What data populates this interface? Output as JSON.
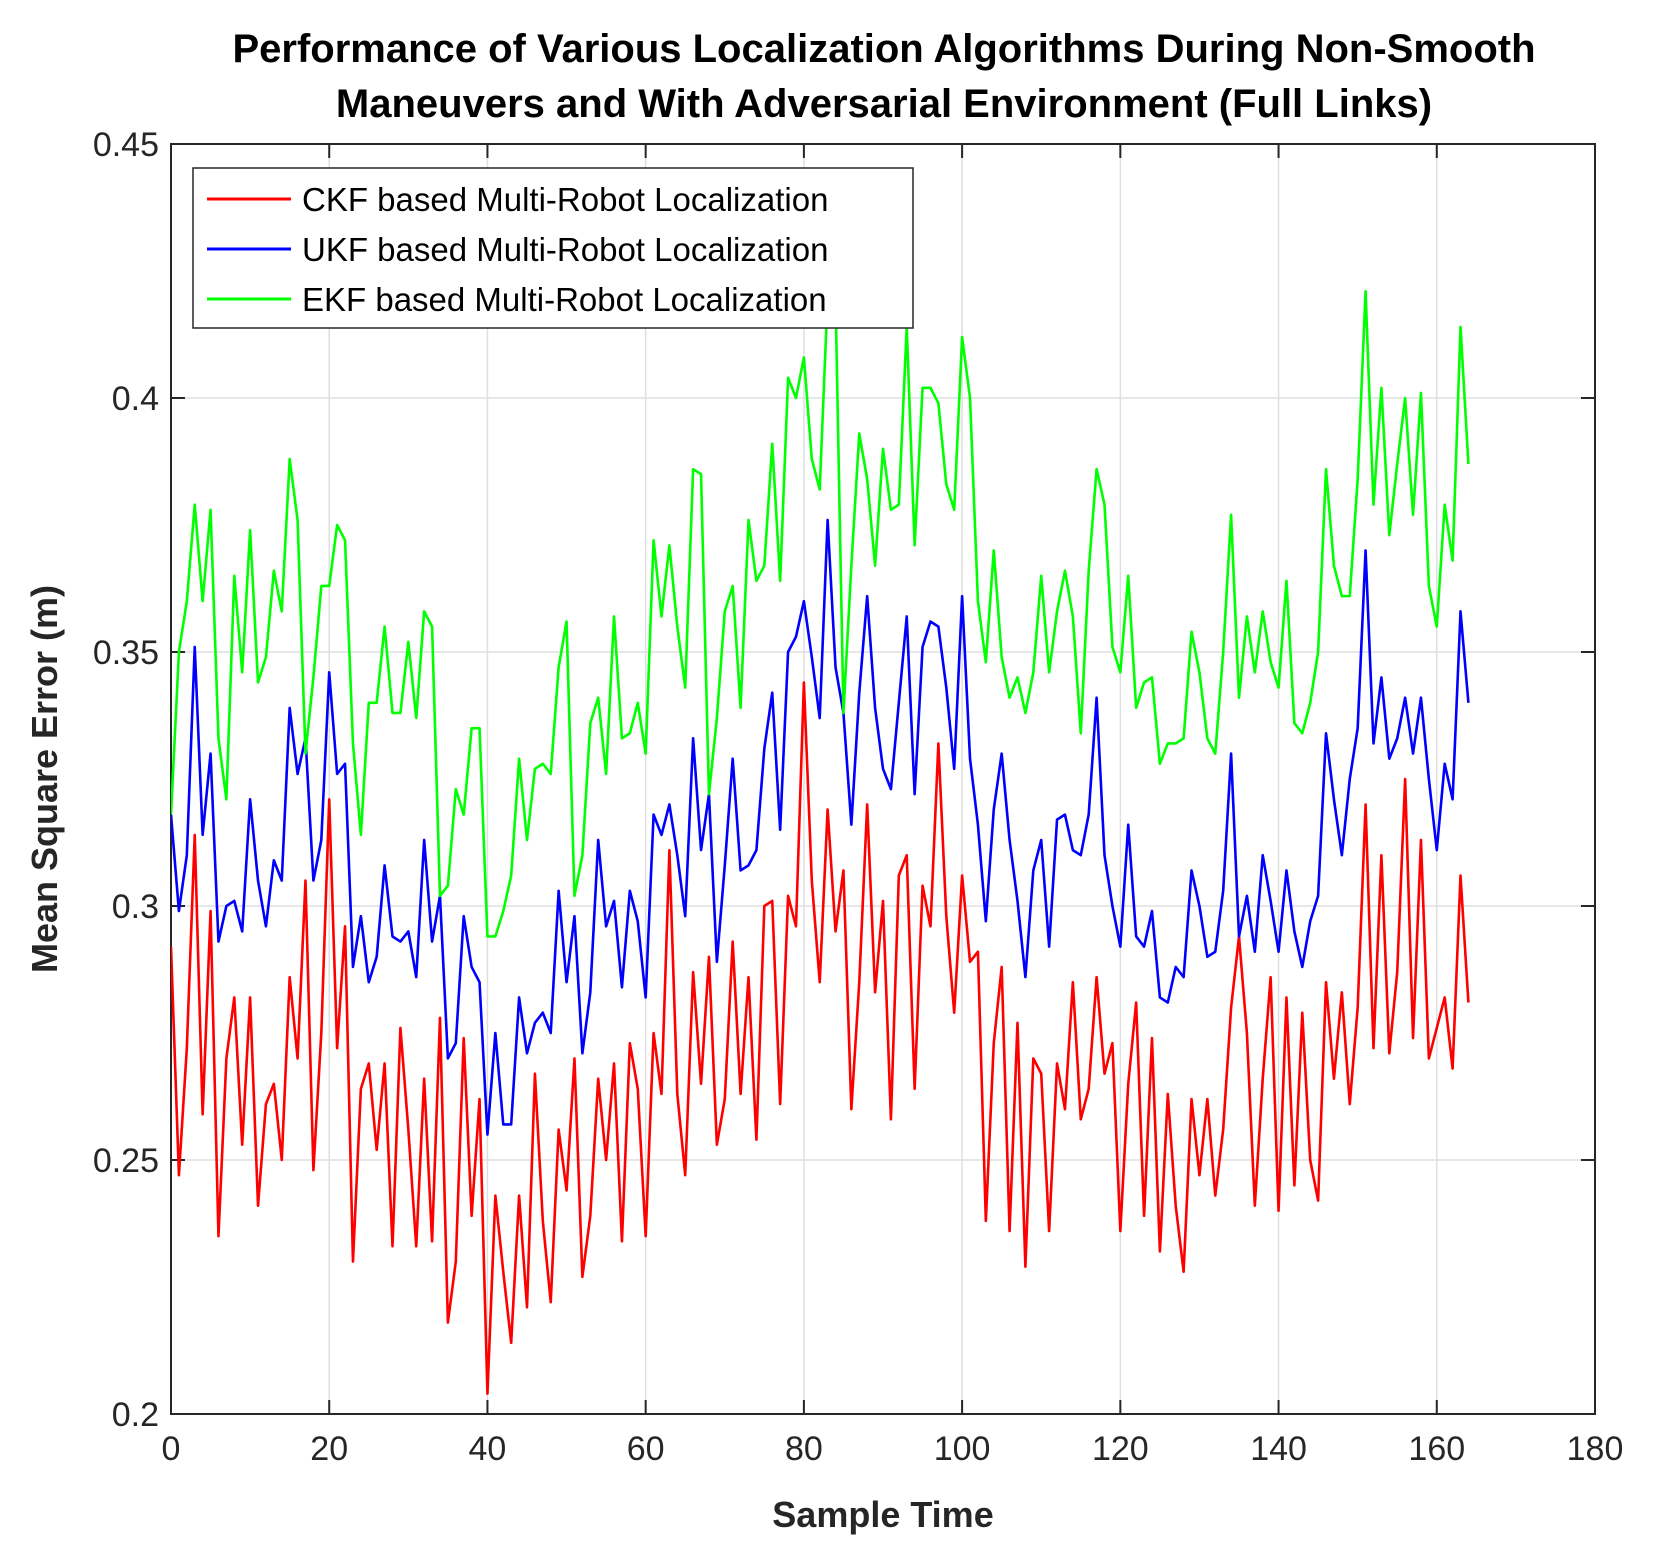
{
  "chart_data": {
    "type": "line",
    "title": [
      "Performance of Various Localization Algorithms During Non-Smooth",
      "Maneuvers and With Adversarial Environment (Full Links)"
    ],
    "xlabel": "Sample Time",
    "ylabel": "Mean Square Error (m)",
    "xlim": [
      0,
      180
    ],
    "ylim": [
      0.2,
      0.45
    ],
    "xticks": [
      0,
      20,
      40,
      60,
      80,
      100,
      120,
      140,
      160,
      180
    ],
    "xtick_labels": [
      "0",
      "20",
      "40",
      "60",
      "80",
      "100",
      "120",
      "140",
      "160",
      "180"
    ],
    "yticks": [
      0.2,
      0.25,
      0.3,
      0.35,
      0.4,
      0.45
    ],
    "ytick_labels": [
      "0.2",
      "0.25",
      "0.3",
      "0.35",
      "0.4",
      "0.45"
    ],
    "grid": true,
    "legend_position": "top-left",
    "x_start": 0,
    "x_step": 1,
    "series": [
      {
        "name": "CKF based Multi-Robot Localization",
        "color": "#ff0000",
        "values": [
          0.292,
          0.247,
          0.272,
          0.314,
          0.259,
          0.299,
          0.235,
          0.27,
          0.282,
          0.253,
          0.282,
          0.241,
          0.261,
          0.265,
          0.25,
          0.286,
          0.27,
          0.305,
          0.248,
          0.275,
          0.321,
          0.272,
          0.296,
          0.23,
          0.264,
          0.269,
          0.252,
          0.269,
          0.233,
          0.276,
          0.256,
          0.233,
          0.266,
          0.234,
          0.278,
          0.218,
          0.23,
          0.274,
          0.239,
          0.262,
          0.204,
          0.243,
          0.228,
          0.214,
          0.243,
          0.221,
          0.267,
          0.238,
          0.222,
          0.256,
          0.244,
          0.27,
          0.227,
          0.239,
          0.266,
          0.25,
          0.269,
          0.234,
          0.273,
          0.264,
          0.235,
          0.275,
          0.263,
          0.311,
          0.263,
          0.247,
          0.287,
          0.265,
          0.29,
          0.253,
          0.262,
          0.293,
          0.263,
          0.286,
          0.254,
          0.3,
          0.301,
          0.261,
          0.302,
          0.296,
          0.344,
          0.305,
          0.285,
          0.319,
          0.295,
          0.307,
          0.26,
          0.285,
          0.32,
          0.283,
          0.301,
          0.258,
          0.306,
          0.31,
          0.264,
          0.304,
          0.296,
          0.332,
          0.298,
          0.279,
          0.306,
          0.289,
          0.291,
          0.238,
          0.273,
          0.288,
          0.236,
          0.277,
          0.229,
          0.27,
          0.267,
          0.236,
          0.269,
          0.26,
          0.285,
          0.258,
          0.264,
          0.286,
          0.267,
          0.273,
          0.236,
          0.265,
          0.281,
          0.239,
          0.274,
          0.232,
          0.263,
          0.241,
          0.228,
          0.262,
          0.247,
          0.262,
          0.243,
          0.256,
          0.28,
          0.294,
          0.275,
          0.241,
          0.266,
          0.286,
          0.24,
          0.282,
          0.245,
          0.279,
          0.25,
          0.242,
          0.285,
          0.266,
          0.283,
          0.261,
          0.28,
          0.32,
          0.272,
          0.31,
          0.271,
          0.287,
          0.325,
          0.274,
          0.313,
          0.27,
          0.276,
          0.282,
          0.268,
          0.306,
          0.281
        ]
      },
      {
        "name": "UKF based Multi-Robot Localization",
        "color": "#0000ff",
        "values": [
          0.318,
          0.299,
          0.31,
          0.351,
          0.314,
          0.33,
          0.293,
          0.3,
          0.301,
          0.295,
          0.321,
          0.305,
          0.296,
          0.309,
          0.305,
          0.339,
          0.326,
          0.333,
          0.305,
          0.313,
          0.346,
          0.326,
          0.328,
          0.288,
          0.298,
          0.285,
          0.29,
          0.308,
          0.294,
          0.293,
          0.295,
          0.286,
          0.313,
          0.293,
          0.302,
          0.27,
          0.273,
          0.298,
          0.288,
          0.285,
          0.255,
          0.275,
          0.257,
          0.257,
          0.282,
          0.271,
          0.277,
          0.279,
          0.275,
          0.303,
          0.285,
          0.298,
          0.271,
          0.283,
          0.313,
          0.296,
          0.301,
          0.284,
          0.303,
          0.297,
          0.282,
          0.318,
          0.314,
          0.32,
          0.31,
          0.298,
          0.333,
          0.311,
          0.322,
          0.289,
          0.308,
          0.329,
          0.307,
          0.308,
          0.311,
          0.331,
          0.342,
          0.315,
          0.35,
          0.353,
          0.36,
          0.349,
          0.337,
          0.376,
          0.347,
          0.338,
          0.316,
          0.342,
          0.361,
          0.339,
          0.327,
          0.323,
          0.34,
          0.357,
          0.322,
          0.351,
          0.356,
          0.355,
          0.343,
          0.327,
          0.361,
          0.329,
          0.316,
          0.297,
          0.319,
          0.33,
          0.313,
          0.301,
          0.286,
          0.307,
          0.313,
          0.292,
          0.317,
          0.318,
          0.311,
          0.31,
          0.318,
          0.341,
          0.31,
          0.3,
          0.292,
          0.316,
          0.294,
          0.292,
          0.299,
          0.282,
          0.281,
          0.288,
          0.286,
          0.307,
          0.3,
          0.29,
          0.291,
          0.303,
          0.33,
          0.294,
          0.302,
          0.291,
          0.31,
          0.301,
          0.291,
          0.307,
          0.295,
          0.288,
          0.297,
          0.302,
          0.334,
          0.321,
          0.31,
          0.325,
          0.335,
          0.37,
          0.332,
          0.345,
          0.329,
          0.333,
          0.341,
          0.33,
          0.341,
          0.325,
          0.311,
          0.328,
          0.321,
          0.358,
          0.34
        ]
      },
      {
        "name": "EKF based Multi-Robot Localization",
        "color": "#00ff00",
        "values": [
          0.318,
          0.35,
          0.36,
          0.379,
          0.36,
          0.378,
          0.333,
          0.321,
          0.365,
          0.346,
          0.374,
          0.344,
          0.349,
          0.366,
          0.358,
          0.388,
          0.376,
          0.33,
          0.345,
          0.363,
          0.363,
          0.375,
          0.372,
          0.332,
          0.314,
          0.34,
          0.34,
          0.355,
          0.338,
          0.338,
          0.352,
          0.337,
          0.358,
          0.355,
          0.302,
          0.304,
          0.323,
          0.318,
          0.335,
          0.335,
          0.294,
          0.294,
          0.299,
          0.306,
          0.329,
          0.313,
          0.327,
          0.328,
          0.326,
          0.347,
          0.356,
          0.302,
          0.31,
          0.336,
          0.341,
          0.326,
          0.357,
          0.333,
          0.334,
          0.34,
          0.33,
          0.372,
          0.357,
          0.371,
          0.355,
          0.343,
          0.386,
          0.385,
          0.322,
          0.337,
          0.358,
          0.363,
          0.339,
          0.376,
          0.364,
          0.367,
          0.391,
          0.364,
          0.404,
          0.4,
          0.408,
          0.388,
          0.382,
          0.42,
          0.42,
          0.338,
          0.367,
          0.393,
          0.384,
          0.367,
          0.39,
          0.378,
          0.379,
          0.414,
          0.371,
          0.402,
          0.402,
          0.399,
          0.383,
          0.378,
          0.412,
          0.4,
          0.36,
          0.348,
          0.37,
          0.349,
          0.341,
          0.345,
          0.338,
          0.346,
          0.365,
          0.346,
          0.358,
          0.366,
          0.357,
          0.334,
          0.366,
          0.386,
          0.379,
          0.351,
          0.346,
          0.365,
          0.339,
          0.344,
          0.345,
          0.328,
          0.332,
          0.332,
          0.333,
          0.354,
          0.346,
          0.333,
          0.33,
          0.35,
          0.377,
          0.341,
          0.357,
          0.346,
          0.358,
          0.348,
          0.343,
          0.364,
          0.336,
          0.334,
          0.34,
          0.35,
          0.386,
          0.367,
          0.361,
          0.361,
          0.384,
          0.421,
          0.379,
          0.402,
          0.373,
          0.387,
          0.4,
          0.377,
          0.401,
          0.363,
          0.355,
          0.379,
          0.368,
          0.414,
          0.387
        ]
      }
    ]
  }
}
